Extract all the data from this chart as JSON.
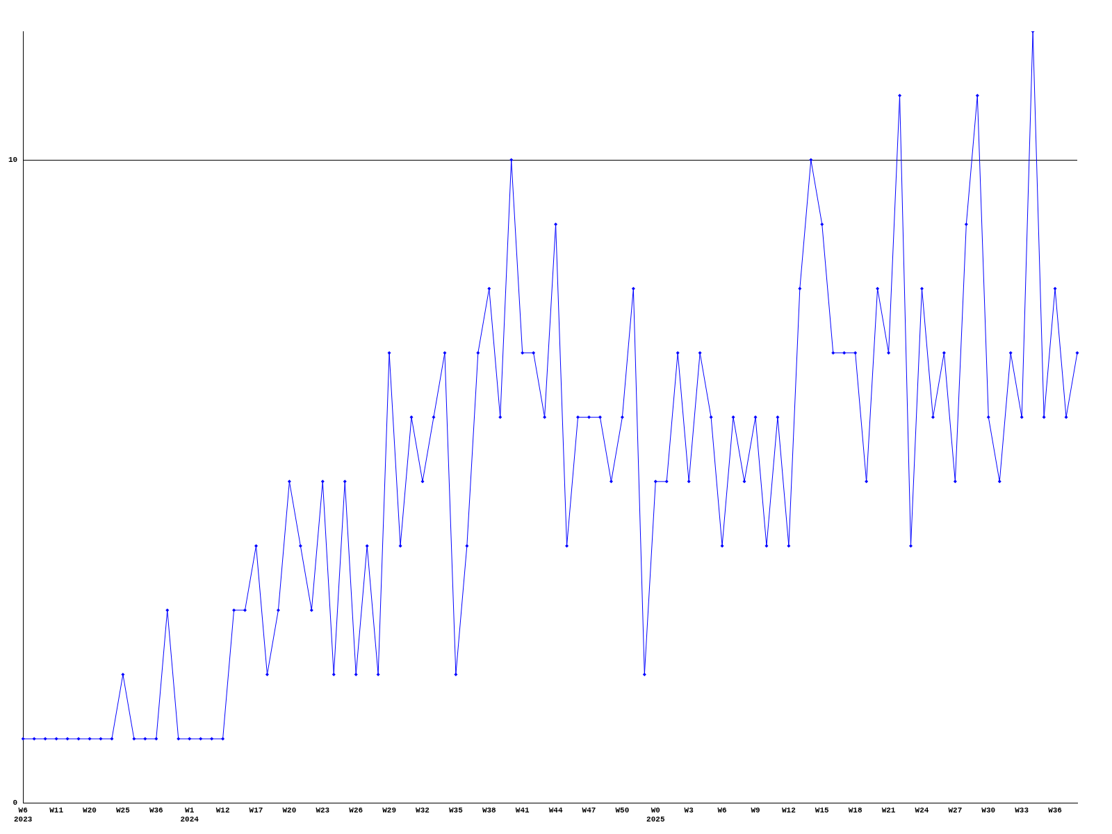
{
  "chart_data": {
    "type": "line",
    "categories": [
      "W6\n2023",
      null,
      null,
      "W11",
      null,
      null,
      "W20",
      null,
      null,
      "W25",
      null,
      null,
      "W36",
      null,
      null,
      "W1\n2024",
      null,
      null,
      "W12",
      null,
      null,
      "W17",
      null,
      null,
      "W20",
      null,
      null,
      "W23",
      null,
      null,
      "W26",
      null,
      null,
      "W29",
      null,
      null,
      "W32",
      null,
      null,
      "W35",
      null,
      null,
      "W38",
      null,
      null,
      "W41",
      null,
      null,
      "W44",
      null,
      null,
      "W47",
      null,
      null,
      "W50",
      null,
      null,
      "W0\n2025",
      null,
      null,
      "W3",
      null,
      null,
      "W6",
      null,
      null,
      "W9",
      null,
      null,
      "W12",
      null,
      null,
      "W15",
      null,
      null,
      "W18",
      null,
      null,
      "W21",
      null,
      null,
      "W24",
      null,
      null,
      "W27",
      null,
      null,
      "W30",
      null,
      null,
      "W33",
      null,
      null,
      "W36",
      null,
      null
    ],
    "series": [
      {
        "color": "#0000ff",
        "values": [
          1,
          1,
          1,
          1,
          1,
          1,
          1,
          1,
          1,
          2,
          1,
          1,
          1,
          3,
          1,
          1,
          1,
          1,
          1,
          3,
          3,
          4,
          2,
          3,
          5,
          4,
          3,
          5,
          2,
          5,
          2,
          4,
          2,
          7,
          4,
          6,
          5,
          6,
          7,
          2,
          4,
          7,
          8,
          6,
          10,
          7,
          7,
          6,
          9,
          4,
          6,
          6,
          6,
          5,
          6,
          8,
          2,
          5,
          5,
          7,
          5,
          7,
          6,
          4,
          6,
          5,
          6,
          4,
          6,
          4,
          8,
          10,
          9,
          7,
          7,
          7,
          5,
          8,
          7,
          11,
          4,
          8,
          6,
          7,
          5,
          9,
          11,
          6,
          5,
          7,
          6,
          12,
          6,
          8,
          6,
          7
        ]
      }
    ],
    "ylim": [
      0,
      12
    ],
    "yticks": [
      0,
      10
    ],
    "grid": "y",
    "legend": false,
    "marker": "diamond",
    "line_style": "solid"
  }
}
